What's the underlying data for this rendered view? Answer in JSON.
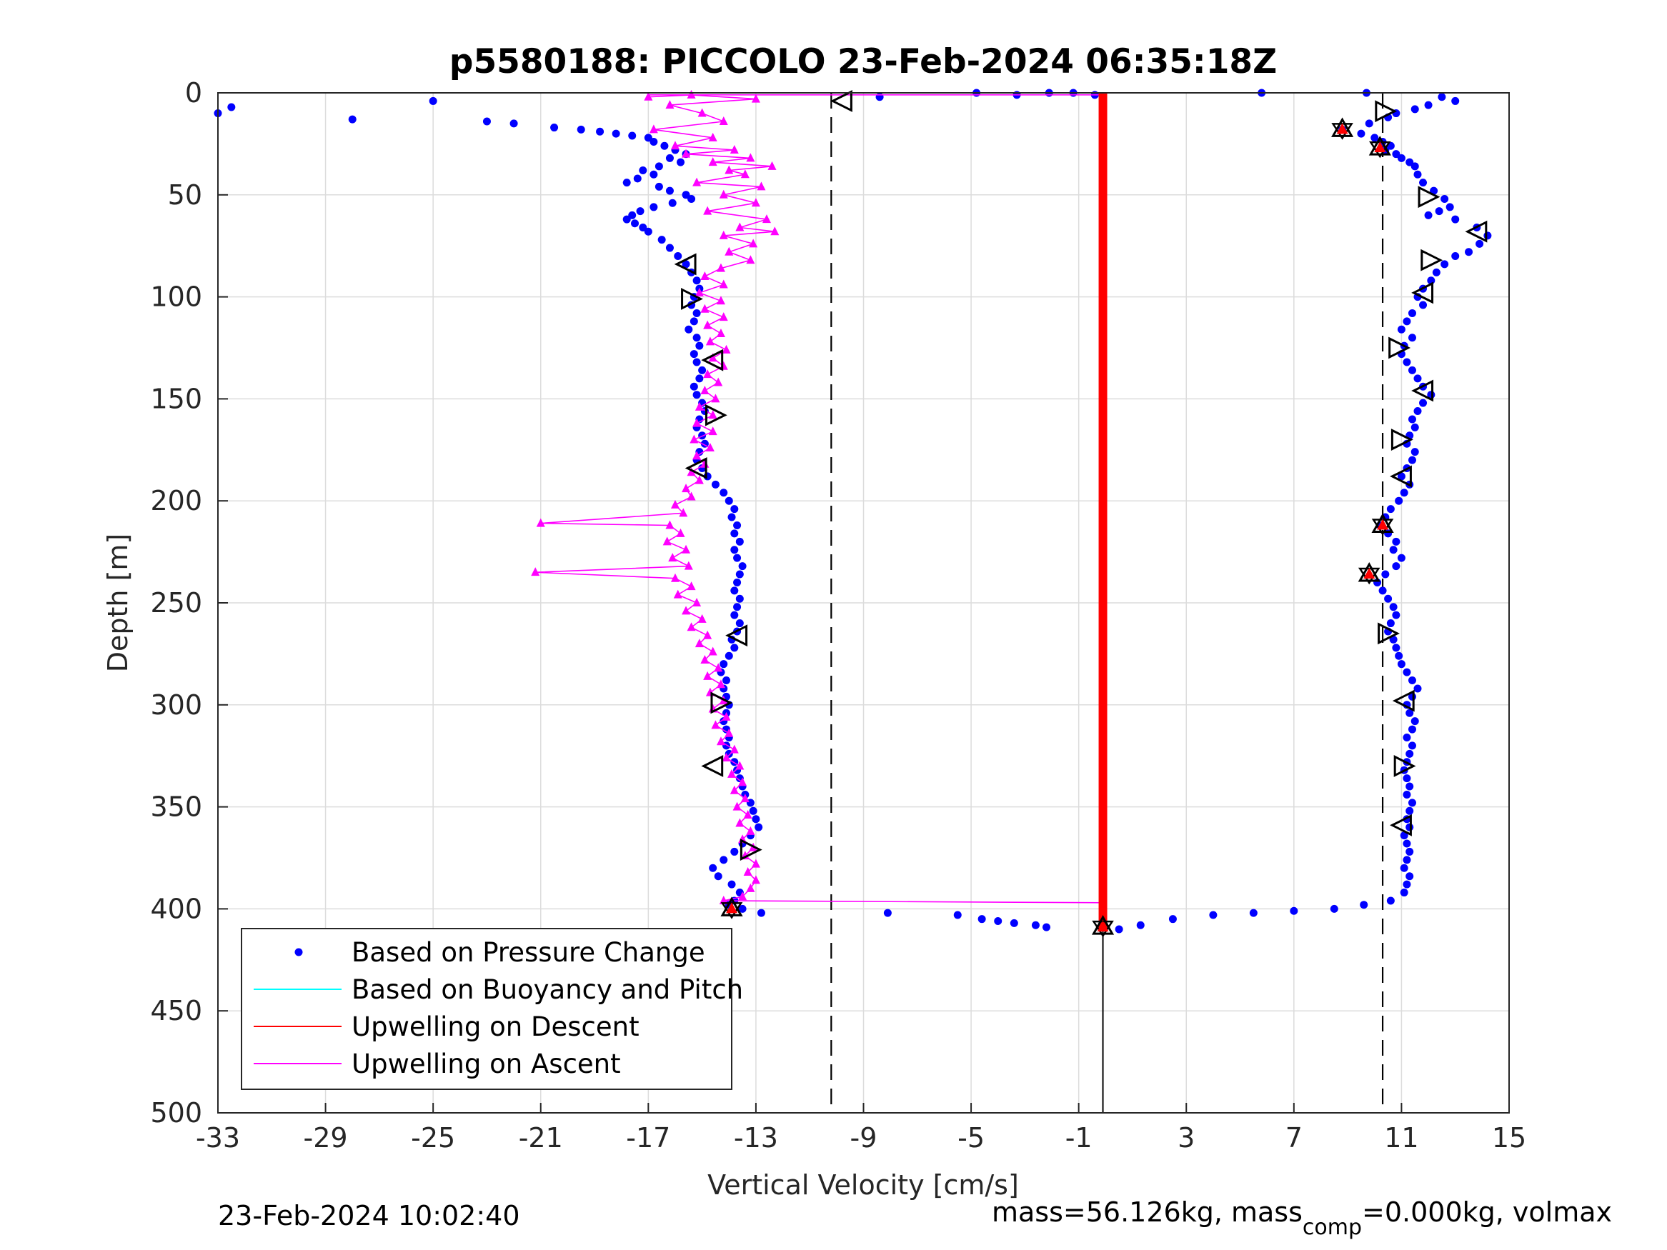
{
  "chart_data": {
    "type": "scatter",
    "title": "p5580188: PICCOLO 23-Feb-2024 06:35:18Z",
    "xlabel": "Vertical Velocity [cm/s]",
    "ylabel": "Depth [m]",
    "xlim": [
      -33,
      15
    ],
    "ylim": [
      0,
      500
    ],
    "y_reversed": true,
    "xticks": [
      -33,
      -29,
      -25,
      -21,
      -17,
      -13,
      -9,
      -5,
      -1,
      3,
      7,
      11,
      15
    ],
    "yticks": [
      0,
      50,
      100,
      150,
      200,
      250,
      300,
      350,
      400,
      450,
      500
    ],
    "grid": true,
    "legend_position": "bottom-left",
    "legend": [
      {
        "label": "Based on Pressure Change",
        "color": "#0000ff",
        "style": "dot"
      },
      {
        "label": "Based on Buoyancy and Pitch",
        "color": "#00ffff",
        "style": "line"
      },
      {
        "label": "Upwelling on Descent",
        "color": "#ff0000",
        "style": "line"
      },
      {
        "label": "Upwelling on Ascent",
        "color": "#ff00ff",
        "style": "line"
      }
    ],
    "vertical_dashed_lines": [
      -10.2,
      10.3
    ],
    "zero_reference_x": 0,
    "pressure_change_descent": [
      [
        5.8,
        0
      ],
      [
        9.7,
        0
      ],
      [
        12.5,
        2
      ],
      [
        13,
        4
      ],
      [
        12,
        6
      ],
      [
        11.5,
        8
      ],
      [
        10.8,
        10
      ],
      [
        10.5,
        12
      ],
      [
        9.8,
        15
      ],
      [
        8.8,
        18
      ],
      [
        9.5,
        20
      ],
      [
        10,
        22
      ],
      [
        10.3,
        24
      ],
      [
        10.6,
        26
      ],
      [
        10.4,
        28
      ],
      [
        10.8,
        30
      ],
      [
        11,
        32
      ],
      [
        11.3,
        34
      ],
      [
        11.5,
        36
      ],
      [
        11.6,
        40
      ],
      [
        11.8,
        44
      ],
      [
        12.2,
        48
      ],
      [
        12.6,
        52
      ],
      [
        12.8,
        56
      ],
      [
        12.4,
        58
      ],
      [
        12,
        60
      ],
      [
        13,
        62
      ],
      [
        13.8,
        66
      ],
      [
        14.2,
        70
      ],
      [
        13.9,
        74
      ],
      [
        13.5,
        78
      ],
      [
        13,
        80
      ],
      [
        12.6,
        84
      ],
      [
        12.3,
        88
      ],
      [
        12.1,
        92
      ],
      [
        11.8,
        96
      ],
      [
        11.6,
        100
      ],
      [
        11.8,
        104
      ],
      [
        11.4,
        108
      ],
      [
        11.2,
        112
      ],
      [
        11,
        116
      ],
      [
        11.4,
        120
      ],
      [
        11.1,
        124
      ],
      [
        11,
        128
      ],
      [
        11.2,
        132
      ],
      [
        11.4,
        136
      ],
      [
        11.6,
        140
      ],
      [
        11.8,
        144
      ],
      [
        12.1,
        148
      ],
      [
        11.8,
        152
      ],
      [
        11.6,
        156
      ],
      [
        11.4,
        160
      ],
      [
        11.5,
        164
      ],
      [
        11.3,
        168
      ],
      [
        11.2,
        172
      ],
      [
        11.5,
        176
      ],
      [
        11.4,
        180
      ],
      [
        11.2,
        184
      ],
      [
        11,
        188
      ],
      [
        11.3,
        192
      ],
      [
        11.1,
        196
      ],
      [
        10.9,
        200
      ],
      [
        10.6,
        204
      ],
      [
        10.4,
        208
      ],
      [
        10.2,
        212
      ],
      [
        10.5,
        216
      ],
      [
        10.8,
        220
      ],
      [
        10.7,
        224
      ],
      [
        11,
        228
      ],
      [
        10.8,
        232
      ],
      [
        10.4,
        236
      ],
      [
        10.1,
        240
      ],
      [
        10.3,
        244
      ],
      [
        10.5,
        248
      ],
      [
        10.7,
        252
      ],
      [
        10.8,
        256
      ],
      [
        10.6,
        260
      ],
      [
        10.5,
        264
      ],
      [
        10.7,
        268
      ],
      [
        10.8,
        272
      ],
      [
        10.9,
        276
      ],
      [
        11,
        280
      ],
      [
        11.2,
        284
      ],
      [
        11.4,
        288
      ],
      [
        11.6,
        292
      ],
      [
        11.4,
        296
      ],
      [
        11.2,
        300
      ],
      [
        11.3,
        304
      ],
      [
        11.5,
        308
      ],
      [
        11.4,
        312
      ],
      [
        11.2,
        316
      ],
      [
        11.4,
        320
      ],
      [
        11.3,
        324
      ],
      [
        11.2,
        328
      ],
      [
        11.1,
        332
      ],
      [
        11.2,
        336
      ],
      [
        11.3,
        340
      ],
      [
        11.2,
        344
      ],
      [
        11.4,
        348
      ],
      [
        11.3,
        352
      ],
      [
        11.2,
        356
      ],
      [
        11.3,
        360
      ],
      [
        11.1,
        364
      ],
      [
        11.2,
        368
      ],
      [
        11.3,
        372
      ],
      [
        11.2,
        376
      ],
      [
        11.1,
        380
      ],
      [
        11.3,
        384
      ],
      [
        11.2,
        388
      ],
      [
        11.1,
        392
      ],
      [
        10.6,
        396
      ],
      [
        9.6,
        398
      ],
      [
        8.5,
        400
      ],
      [
        7,
        401
      ],
      [
        5.5,
        402
      ],
      [
        4,
        403
      ],
      [
        2.5,
        405
      ],
      [
        1.3,
        408
      ],
      [
        0.5,
        410
      ]
    ],
    "pressure_change_ascent": [
      [
        -33,
        10
      ],
      [
        -32.5,
        7
      ],
      [
        -28,
        13
      ],
      [
        -25,
        4
      ],
      [
        -23,
        14
      ],
      [
        -22,
        15
      ],
      [
        -20.5,
        17
      ],
      [
        -19.5,
        18
      ],
      [
        -18.8,
        19
      ],
      [
        -18.2,
        20
      ],
      [
        -17.6,
        21
      ],
      [
        -17,
        22
      ],
      [
        -16.8,
        24
      ],
      [
        -16.4,
        26
      ],
      [
        -16,
        28
      ],
      [
        -15.6,
        30
      ],
      [
        -16.2,
        32
      ],
      [
        -15.8,
        34
      ],
      [
        -16.6,
        36
      ],
      [
        -17.2,
        38
      ],
      [
        -16.8,
        40
      ],
      [
        -17.4,
        42
      ],
      [
        -17.8,
        44
      ],
      [
        -16.6,
        46
      ],
      [
        -16.2,
        48
      ],
      [
        -15.6,
        50
      ],
      [
        -15.4,
        52
      ],
      [
        -16.1,
        54
      ],
      [
        -16.8,
        56
      ],
      [
        -17.3,
        58
      ],
      [
        -17.6,
        60
      ],
      [
        -17.8,
        62
      ],
      [
        -17.5,
        64
      ],
      [
        -17.2,
        66
      ],
      [
        -17,
        68
      ],
      [
        -16.5,
        72
      ],
      [
        -16.2,
        76
      ],
      [
        -15.9,
        80
      ],
      [
        -15.6,
        84
      ],
      [
        -15.4,
        88
      ],
      [
        -15.2,
        92
      ],
      [
        -15.1,
        96
      ],
      [
        -15.3,
        100
      ],
      [
        -15.4,
        104
      ],
      [
        -15.2,
        108
      ],
      [
        -15.3,
        112
      ],
      [
        -15.5,
        116
      ],
      [
        -15.2,
        120
      ],
      [
        -15.1,
        124
      ],
      [
        -15.3,
        128
      ],
      [
        -15.2,
        132
      ],
      [
        -15,
        136
      ],
      [
        -15.1,
        140
      ],
      [
        -15.3,
        144
      ],
      [
        -15.2,
        148
      ],
      [
        -15,
        152
      ],
      [
        -14.9,
        156
      ],
      [
        -15.1,
        160
      ],
      [
        -15.2,
        164
      ],
      [
        -15,
        168
      ],
      [
        -14.9,
        172
      ],
      [
        -15.1,
        176
      ],
      [
        -15.2,
        180
      ],
      [
        -15,
        184
      ],
      [
        -14.8,
        188
      ],
      [
        -14.5,
        192
      ],
      [
        -14.2,
        196
      ],
      [
        -14,
        200
      ],
      [
        -13.8,
        204
      ],
      [
        -13.9,
        208
      ],
      [
        -13.7,
        212
      ],
      [
        -13.8,
        216
      ],
      [
        -13.6,
        220
      ],
      [
        -13.8,
        224
      ],
      [
        -13.7,
        228
      ],
      [
        -13.5,
        232
      ],
      [
        -13.6,
        236
      ],
      [
        -13.7,
        240
      ],
      [
        -13.8,
        244
      ],
      [
        -13.6,
        248
      ],
      [
        -13.7,
        252
      ],
      [
        -13.8,
        256
      ],
      [
        -13.6,
        260
      ],
      [
        -13.7,
        264
      ],
      [
        -13.9,
        268
      ],
      [
        -13.8,
        272
      ],
      [
        -14,
        276
      ],
      [
        -14.2,
        280
      ],
      [
        -14.3,
        284
      ],
      [
        -14.1,
        288
      ],
      [
        -14.2,
        292
      ],
      [
        -14.1,
        296
      ],
      [
        -14,
        300
      ],
      [
        -14.1,
        304
      ],
      [
        -14.2,
        308
      ],
      [
        -14.1,
        312
      ],
      [
        -14,
        316
      ],
      [
        -14.1,
        320
      ],
      [
        -14,
        324
      ],
      [
        -13.8,
        328
      ],
      [
        -13.7,
        332
      ],
      [
        -13.6,
        336
      ],
      [
        -13.5,
        340
      ],
      [
        -13.4,
        344
      ],
      [
        -13.2,
        348
      ],
      [
        -13.1,
        352
      ],
      [
        -13,
        356
      ],
      [
        -12.9,
        360
      ],
      [
        -13.2,
        364
      ],
      [
        -13.5,
        368
      ],
      [
        -13.8,
        372
      ],
      [
        -14.2,
        376
      ],
      [
        -14.6,
        380
      ],
      [
        -14.4,
        384
      ],
      [
        -13.9,
        388
      ],
      [
        -13.6,
        392
      ],
      [
        -13.8,
        396
      ],
      [
        -14,
        398
      ],
      [
        -13.5,
        400
      ],
      [
        -12.8,
        402
      ],
      [
        -8.1,
        402
      ],
      [
        -5.5,
        403
      ],
      [
        -4.6,
        405
      ],
      [
        -4,
        406
      ],
      [
        -3.4,
        407
      ],
      [
        -2.6,
        408
      ],
      [
        -2.2,
        409
      ],
      [
        -4.8,
        0
      ],
      [
        -3.3,
        1
      ],
      [
        -2.1,
        0
      ],
      [
        -1.2,
        0
      ],
      [
        -0.4,
        1
      ],
      [
        -8.4,
        2
      ]
    ],
    "upwelling_descent": {
      "x": -0.1,
      "depth_range": [
        0,
        410
      ]
    },
    "upwelling_ascent": [
      [
        -17,
        2
      ],
      [
        -15.4,
        1
      ],
      [
        -13,
        3
      ],
      [
        -16.2,
        6
      ],
      [
        -15,
        10
      ],
      [
        -14.2,
        14
      ],
      [
        -16.8,
        18
      ],
      [
        -14.6,
        22
      ],
      [
        -16,
        26
      ],
      [
        -13.8,
        28
      ],
      [
        -15.6,
        30
      ],
      [
        -13.2,
        32
      ],
      [
        -14.6,
        34
      ],
      [
        -12.4,
        36
      ],
      [
        -14,
        38
      ],
      [
        -13.4,
        40
      ],
      [
        -15.2,
        44
      ],
      [
        -12.8,
        46
      ],
      [
        -14.2,
        50
      ],
      [
        -13,
        54
      ],
      [
        -14.8,
        58
      ],
      [
        -12.6,
        62
      ],
      [
        -13.6,
        66
      ],
      [
        -12.3,
        68
      ],
      [
        -14.2,
        70
      ],
      [
        -13.1,
        74
      ],
      [
        -14,
        78
      ],
      [
        -13.2,
        82
      ],
      [
        -14.3,
        86
      ],
      [
        -14.9,
        90
      ],
      [
        -14.2,
        94
      ],
      [
        -15.1,
        98
      ],
      [
        -14.3,
        102
      ],
      [
        -14.9,
        106
      ],
      [
        -14.2,
        110
      ],
      [
        -14.8,
        114
      ],
      [
        -14.3,
        118
      ],
      [
        -14.7,
        122
      ],
      [
        -14.1,
        126
      ],
      [
        -14.6,
        130
      ],
      [
        -14.2,
        134
      ],
      [
        -14.8,
        138
      ],
      [
        -14.4,
        142
      ],
      [
        -14.9,
        146
      ],
      [
        -14.5,
        150
      ],
      [
        -15.1,
        154
      ],
      [
        -14.6,
        158
      ],
      [
        -15.2,
        162
      ],
      [
        -14.6,
        166
      ],
      [
        -15.3,
        170
      ],
      [
        -14.7,
        174
      ],
      [
        -15.2,
        178
      ],
      [
        -14.9,
        182
      ],
      [
        -15.4,
        186
      ],
      [
        -15.1,
        190
      ],
      [
        -15.6,
        194
      ],
      [
        -15.4,
        198
      ],
      [
        -16,
        202
      ],
      [
        -15.7,
        206
      ],
      [
        -21,
        211
      ],
      [
        -16.2,
        212
      ],
      [
        -15.8,
        216
      ],
      [
        -16.3,
        220
      ],
      [
        -15.6,
        224
      ],
      [
        -16.1,
        228
      ],
      [
        -15.5,
        232
      ],
      [
        -21.2,
        235
      ],
      [
        -16,
        238
      ],
      [
        -15.4,
        242
      ],
      [
        -15.9,
        246
      ],
      [
        -15.2,
        250
      ],
      [
        -15.6,
        254
      ],
      [
        -15,
        258
      ],
      [
        -15.4,
        262
      ],
      [
        -14.8,
        266
      ],
      [
        -15.1,
        270
      ],
      [
        -14.6,
        274
      ],
      [
        -14.9,
        278
      ],
      [
        -14.4,
        282
      ],
      [
        -14.8,
        286
      ],
      [
        -14.3,
        290
      ],
      [
        -14.7,
        294
      ],
      [
        -14.2,
        298
      ],
      [
        -14.6,
        302
      ],
      [
        -14.1,
        306
      ],
      [
        -14.5,
        310
      ],
      [
        -14,
        314
      ],
      [
        -14.3,
        318
      ],
      [
        -13.8,
        322
      ],
      [
        -14.1,
        326
      ],
      [
        -13.6,
        330
      ],
      [
        -13.9,
        334
      ],
      [
        -13.5,
        338
      ],
      [
        -13.8,
        342
      ],
      [
        -13.4,
        346
      ],
      [
        -13.7,
        350
      ],
      [
        -13.3,
        354
      ],
      [
        -13.6,
        358
      ],
      [
        -13.2,
        362
      ],
      [
        -13.5,
        366
      ],
      [
        -13.1,
        370
      ],
      [
        -13.4,
        374
      ],
      [
        -13,
        378
      ],
      [
        -13.3,
        382
      ],
      [
        -13,
        386
      ],
      [
        -13.2,
        390
      ],
      [
        -13.5,
        394
      ],
      [
        -14.2,
        396
      ],
      [
        -0.1,
        397
      ]
    ],
    "open_markers_down": [
      [
        10.4,
        9,
        "right"
      ],
      [
        12,
        51,
        "right"
      ],
      [
        13.8,
        68,
        "left"
      ],
      [
        12.1,
        82,
        "right"
      ],
      [
        11.8,
        98,
        "left"
      ],
      [
        10.9,
        125,
        "right"
      ],
      [
        11.8,
        146,
        "left"
      ],
      [
        11,
        170,
        "right"
      ],
      [
        11,
        188,
        "left"
      ],
      [
        10.5,
        265,
        "right"
      ],
      [
        11.1,
        298,
        "left"
      ],
      [
        11.1,
        330,
        "right"
      ],
      [
        11,
        359,
        "left"
      ]
    ],
    "open_markers_up": [
      [
        -9.8,
        4,
        "left"
      ],
      [
        -15.6,
        84,
        "left"
      ],
      [
        -15.4,
        101,
        "right"
      ],
      [
        -14.6,
        131,
        "left"
      ],
      [
        -14.5,
        158,
        "right"
      ],
      [
        -15.2,
        184,
        "left"
      ],
      [
        -13.7,
        266,
        "left"
      ],
      [
        -14.3,
        299,
        "right"
      ],
      [
        -14.6,
        330,
        "left"
      ],
      [
        -13.2,
        371,
        "right"
      ]
    ],
    "red_markers": [
      [
        8.8,
        18
      ],
      [
        10.2,
        27
      ],
      [
        10.3,
        212
      ],
      [
        9.8,
        236
      ],
      [
        -13.9,
        400
      ],
      [
        -0.1,
        409
      ]
    ]
  },
  "footer": {
    "timestamp": "23-Feb-2024 10:02:40",
    "mass_text": "mass=56.126kg, mass",
    "mass_sub": "comp",
    "mass_rest": "=0.000kg, volmax"
  }
}
